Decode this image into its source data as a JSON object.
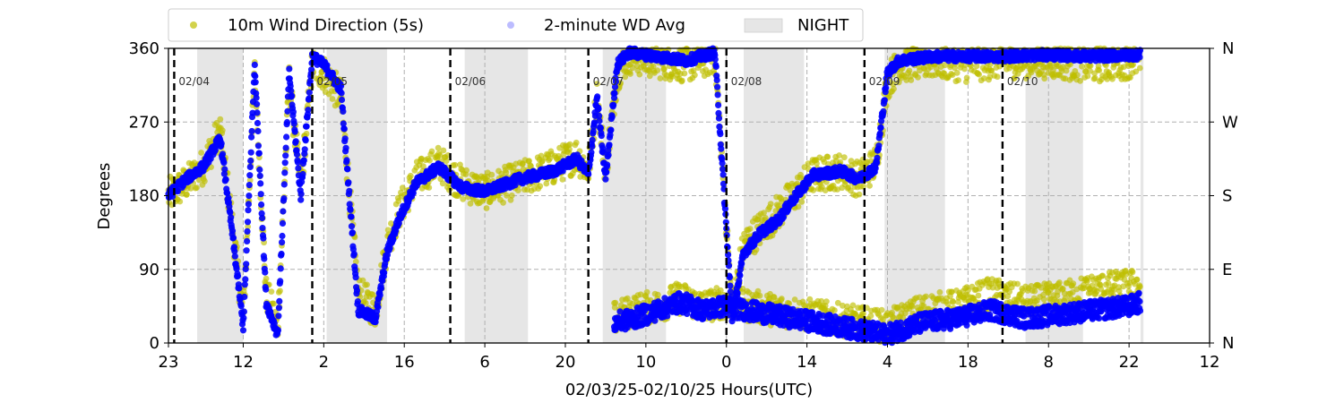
{
  "chart_data": {
    "type": "scatter",
    "title": "",
    "xlabel": "02/03/25-02/10/25  Hours(UTC)",
    "ylabel": "Degrees",
    "ylim": [
      0,
      360
    ],
    "xlim": [
      "2025-02-03 23:00",
      "2025-02-11 12:00"
    ],
    "yticks": [
      0,
      90,
      180,
      270,
      360
    ],
    "right_yticks": [
      {
        "value": 0,
        "label": "N"
      },
      {
        "value": 90,
        "label": "E"
      },
      {
        "value": 180,
        "label": "S"
      },
      {
        "value": 270,
        "label": "W"
      },
      {
        "value": 360,
        "label": "N"
      }
    ],
    "xticks": [
      {
        "time": "2025-02-03 23:00",
        "label": "23"
      },
      {
        "time": "2025-02-04 12:00",
        "label": "12"
      },
      {
        "time": "2025-02-05 02:00",
        "label": "2"
      },
      {
        "time": "2025-02-05 16:00",
        "label": "16"
      },
      {
        "time": "2025-02-06 06:00",
        "label": "6"
      },
      {
        "time": "2025-02-06 20:00",
        "label": "20"
      },
      {
        "time": "2025-02-07 10:00",
        "label": "10"
      },
      {
        "time": "2025-02-08 00:00",
        "label": "0"
      },
      {
        "time": "2025-02-08 14:00",
        "label": "14"
      },
      {
        "time": "2025-02-09 04:00",
        "label": "4"
      },
      {
        "time": "2025-02-09 18:00",
        "label": "18"
      },
      {
        "time": "2025-02-10 08:00",
        "label": "8"
      },
      {
        "time": "2025-02-10 22:00",
        "label": "22"
      },
      {
        "time": "2025-02-11 12:00",
        "label": "12"
      }
    ],
    "grid": true,
    "legend_position": "top-left, above plot",
    "legend": [
      {
        "label": "10m Wind Direction (5s)",
        "kind": "marker",
        "color": "#bfbf00"
      },
      {
        "label": "2-minute WD Avg",
        "kind": "marker",
        "color": "#6b6bff"
      },
      {
        "label": "NIGHT",
        "kind": "patch",
        "color": "#e6e6e6"
      }
    ],
    "day_markers": [
      {
        "time": "2025-02-04 00:00",
        "label": "02/04"
      },
      {
        "time": "2025-02-05 00:00",
        "label": "02/05"
      },
      {
        "time": "2025-02-06 00:00",
        "label": "02/06"
      },
      {
        "time": "2025-02-07 00:00",
        "label": "02/07"
      },
      {
        "time": "2025-02-08 00:00",
        "label": "02/08"
      },
      {
        "time": "2025-02-09 00:00",
        "label": "02/09"
      },
      {
        "time": "2025-02-10 00:00",
        "label": "02/10"
      }
    ],
    "night_periods": [
      {
        "start": "2025-02-04 04:00",
        "end": "2025-02-04 12:00"
      },
      {
        "start": "2025-02-05 02:30",
        "end": "2025-02-05 13:00"
      },
      {
        "start": "2025-02-06 02:30",
        "end": "2025-02-06 13:30"
      },
      {
        "start": "2025-02-07 02:30",
        "end": "2025-02-07 13:30"
      },
      {
        "start": "2025-02-08 03:00",
        "end": "2025-02-08 13:30"
      },
      {
        "start": "2025-02-09 03:30",
        "end": "2025-02-09 14:00"
      },
      {
        "start": "2025-02-10 04:00",
        "end": "2025-02-10 14:00"
      },
      {
        "start": "2025-02-11 00:00",
        "end": "2025-02-11 00:30"
      }
    ],
    "series": [
      {
        "name": "10m Wind Direction (5s)",
        "color": "#bfbf00",
        "spread": 22,
        "points": [
          {
            "t": "2025-02-03 23:00",
            "y": 180
          },
          {
            "t": "2025-02-04 02:00",
            "y": 195
          },
          {
            "t": "2025-02-04 05:00",
            "y": 215
          },
          {
            "t": "2025-02-04 08:00",
            "y": 260
          },
          {
            "t": "2025-02-04 10:00",
            "y": 150
          },
          {
            "t": "2025-02-04 12:00",
            "y": 30
          },
          {
            "t": "2025-02-04 14:00",
            "y": 330
          },
          {
            "t": "2025-02-04 16:00",
            "y": 60
          },
          {
            "t": "2025-02-04 18:00",
            "y": 20
          },
          {
            "t": "2025-02-04 20:00",
            "y": 320
          },
          {
            "t": "2025-02-04 22:00",
            "y": 190
          },
          {
            "t": "2025-02-05 00:00",
            "y": 340
          },
          {
            "t": "2025-02-05 02:00",
            "y": 330
          },
          {
            "t": "2025-02-05 05:00",
            "y": 300
          },
          {
            "t": "2025-02-05 08:00",
            "y": 60
          },
          {
            "t": "2025-02-05 11:00",
            "y": 40
          },
          {
            "t": "2025-02-05 13:00",
            "y": 120
          },
          {
            "t": "2025-02-05 15:00",
            "y": 160
          },
          {
            "t": "2025-02-05 18:00",
            "y": 200
          },
          {
            "t": "2025-02-05 22:00",
            "y": 220
          },
          {
            "t": "2025-02-06 02:00",
            "y": 195
          },
          {
            "t": "2025-02-06 06:00",
            "y": 185
          },
          {
            "t": "2025-02-06 12:00",
            "y": 200
          },
          {
            "t": "2025-02-06 18:00",
            "y": 215
          },
          {
            "t": "2025-02-06 22:00",
            "y": 230
          },
          {
            "t": "2025-02-07 00:00",
            "y": 210
          },
          {
            "t": "2025-02-07 01:30",
            "y": 300
          },
          {
            "t": "2025-02-07 03:00",
            "y": 210
          },
          {
            "t": "2025-02-07 05:00",
            "y": 330
          },
          {
            "t": "2025-02-07 07:00",
            "y": 350
          },
          {
            "t": "2025-02-07 12:00",
            "y": 345
          },
          {
            "t": "2025-02-07 17:00",
            "y": 340
          },
          {
            "t": "2025-02-07 22:00",
            "y": 350
          },
          {
            "t": "2025-02-08 01:00",
            "y": 40
          },
          {
            "t": "2025-02-08 03:00",
            "y": 120
          },
          {
            "t": "2025-02-08 06:00",
            "y": 140
          },
          {
            "t": "2025-02-08 09:00",
            "y": 160
          },
          {
            "t": "2025-02-08 11:00",
            "y": 175
          },
          {
            "t": "2025-02-08 15:00",
            "y": 205
          },
          {
            "t": "2025-02-08 20:00",
            "y": 210
          },
          {
            "t": "2025-02-08 23:00",
            "y": 200
          },
          {
            "t": "2025-02-09 02:00",
            "y": 220
          },
          {
            "t": "2025-02-09 04:00",
            "y": 320
          },
          {
            "t": "2025-02-09 06:00",
            "y": 340
          },
          {
            "t": "2025-02-09 12:00",
            "y": 345
          },
          {
            "t": "2025-02-09 18:00",
            "y": 340
          },
          {
            "t": "2025-02-10 00:00",
            "y": 345
          },
          {
            "t": "2025-02-10 08:00",
            "y": 345
          },
          {
            "t": "2025-02-10 16:00",
            "y": 340
          },
          {
            "t": "2025-02-10 22:00",
            "y": 345
          },
          {
            "t": "2025-02-11 00:00",
            "y": 345
          }
        ]
      },
      {
        "name": "10m Wind Direction (5s)",
        "color": "#bfbf00",
        "spread": 20,
        "points": [
          {
            "t": "2025-02-07 04:30",
            "y": 30
          },
          {
            "t": "2025-02-07 08:00",
            "y": 40
          },
          {
            "t": "2025-02-07 12:00",
            "y": 45
          },
          {
            "t": "2025-02-07 16:00",
            "y": 55
          },
          {
            "t": "2025-02-07 20:00",
            "y": 45
          },
          {
            "t": "2025-02-07 23:30",
            "y": 50
          },
          {
            "t": "2025-02-09 04:00",
            "y": 20
          },
          {
            "t": "2025-02-09 10:00",
            "y": 40
          },
          {
            "t": "2025-02-09 16:00",
            "y": 45
          },
          {
            "t": "2025-02-09 22:00",
            "y": 60
          },
          {
            "t": "2025-02-10 04:00",
            "y": 50
          },
          {
            "t": "2025-02-10 10:00",
            "y": 55
          },
          {
            "t": "2025-02-10 16:00",
            "y": 65
          },
          {
            "t": "2025-02-10 22:00",
            "y": 70
          },
          {
            "t": "2025-02-11 00:00",
            "y": 70
          }
        ]
      },
      {
        "name": "2-minute WD Avg",
        "color": "#0000ff",
        "spread": 6,
        "points": [
          {
            "t": "2025-02-03 23:00",
            "y": 180
          },
          {
            "t": "2025-02-04 02:00",
            "y": 200
          },
          {
            "t": "2025-02-04 05:00",
            "y": 215
          },
          {
            "t": "2025-02-04 08:00",
            "y": 250
          },
          {
            "t": "2025-02-04 10:00",
            "y": 140
          },
          {
            "t": "2025-02-04 12:00",
            "y": 20
          },
          {
            "t": "2025-02-04 14:00",
            "y": 340
          },
          {
            "t": "2025-02-04 16:00",
            "y": 50
          },
          {
            "t": "2025-02-04 18:00",
            "y": 10
          },
          {
            "t": "2025-02-04 20:00",
            "y": 330
          },
          {
            "t": "2025-02-04 22:00",
            "y": 180
          },
          {
            "t": "2025-02-05 00:00",
            "y": 350
          },
          {
            "t": "2025-02-05 02:00",
            "y": 340
          },
          {
            "t": "2025-02-05 05:00",
            "y": 310
          },
          {
            "t": "2025-02-05 08:00",
            "y": 40
          },
          {
            "t": "2025-02-05 11:00",
            "y": 30
          },
          {
            "t": "2025-02-05 13:00",
            "y": 110
          },
          {
            "t": "2025-02-05 15:00",
            "y": 150
          },
          {
            "t": "2025-02-05 18:00",
            "y": 195
          },
          {
            "t": "2025-02-05 22:00",
            "y": 215
          },
          {
            "t": "2025-02-06 02:00",
            "y": 190
          },
          {
            "t": "2025-02-06 06:00",
            "y": 185
          },
          {
            "t": "2025-02-06 12:00",
            "y": 200
          },
          {
            "t": "2025-02-06 18:00",
            "y": 210
          },
          {
            "t": "2025-02-06 22:00",
            "y": 225
          },
          {
            "t": "2025-02-07 00:00",
            "y": 205
          },
          {
            "t": "2025-02-07 01:30",
            "y": 300
          },
          {
            "t": "2025-02-07 03:00",
            "y": 200
          },
          {
            "t": "2025-02-07 05:00",
            "y": 340
          },
          {
            "t": "2025-02-07 07:00",
            "y": 355
          },
          {
            "t": "2025-02-07 12:00",
            "y": 350
          },
          {
            "t": "2025-02-07 17:00",
            "y": 345
          },
          {
            "t": "2025-02-07 22:00",
            "y": 355
          },
          {
            "t": "2025-02-08 01:00",
            "y": 30
          },
          {
            "t": "2025-02-08 03:00",
            "y": 110
          },
          {
            "t": "2025-02-08 06:00",
            "y": 135
          },
          {
            "t": "2025-02-08 09:00",
            "y": 150
          },
          {
            "t": "2025-02-08 11:00",
            "y": 170
          },
          {
            "t": "2025-02-08 15:00",
            "y": 205
          },
          {
            "t": "2025-02-08 20:00",
            "y": 210
          },
          {
            "t": "2025-02-08 23:00",
            "y": 200
          },
          {
            "t": "2025-02-09 02:00",
            "y": 215
          },
          {
            "t": "2025-02-09 04:00",
            "y": 330
          },
          {
            "t": "2025-02-09 06:00",
            "y": 345
          },
          {
            "t": "2025-02-09 12:00",
            "y": 350
          },
          {
            "t": "2025-02-09 18:00",
            "y": 350
          },
          {
            "t": "2025-02-10 00:00",
            "y": 350
          },
          {
            "t": "2025-02-10 08:00",
            "y": 352
          },
          {
            "t": "2025-02-10 16:00",
            "y": 350
          },
          {
            "t": "2025-02-10 22:00",
            "y": 352
          },
          {
            "t": "2025-02-11 00:00",
            "y": 352
          }
        ]
      },
      {
        "name": "2-minute WD Avg",
        "color": "#0000ff",
        "spread": 12,
        "points": [
          {
            "t": "2025-02-07 04:30",
            "y": 25
          },
          {
            "t": "2025-02-07 08:00",
            "y": 30
          },
          {
            "t": "2025-02-07 12:00",
            "y": 40
          },
          {
            "t": "2025-02-07 16:00",
            "y": 50
          },
          {
            "t": "2025-02-07 20:00",
            "y": 40
          },
          {
            "t": "2025-02-07 23:30",
            "y": 45
          },
          {
            "t": "2025-02-09 04:00",
            "y": 10
          },
          {
            "t": "2025-02-09 10:00",
            "y": 25
          },
          {
            "t": "2025-02-09 16:00",
            "y": 30
          },
          {
            "t": "2025-02-09 22:00",
            "y": 40
          },
          {
            "t": "2025-02-10 04:00",
            "y": 30
          },
          {
            "t": "2025-02-10 10:00",
            "y": 35
          },
          {
            "t": "2025-02-10 16:00",
            "y": 40
          },
          {
            "t": "2025-02-10 22:00",
            "y": 45
          },
          {
            "t": "2025-02-11 00:00",
            "y": 50
          }
        ]
      }
    ]
  }
}
